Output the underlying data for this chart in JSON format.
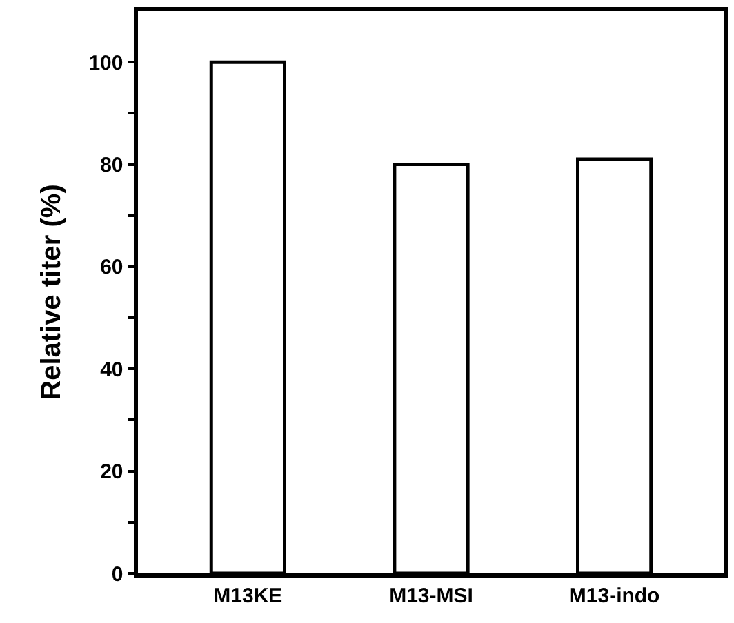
{
  "chart_data": {
    "type": "bar",
    "ylabel": "Relative titer (%)",
    "categories": [
      "M13KE",
      "M13-MSI",
      "M13-indo"
    ],
    "values": [
      100,
      80,
      81
    ],
    "color": "#ffffff",
    "ylim": [
      0,
      110
    ],
    "yticks": [
      0,
      {
        "value": 10,
        "label": null
      },
      20,
      {
        "value": 30,
        "label": null
      },
      40,
      {
        "value": 50,
        "label": null
      },
      60,
      {
        "value": 70,
        "label": null
      },
      80,
      {
        "value": 90,
        "label": null
      },
      100
    ]
  }
}
